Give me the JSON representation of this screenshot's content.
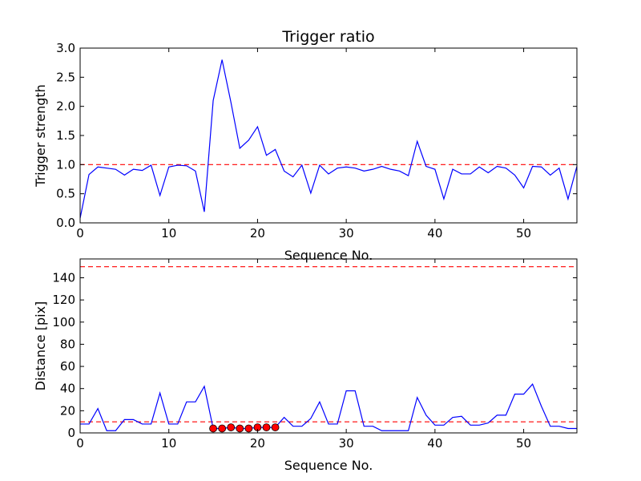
{
  "chart_data": [
    {
      "type": "line",
      "title": "Trigger ratio",
      "xlabel": "Sequence No.",
      "ylabel": "Trigger strength",
      "xlim": [
        0,
        56
      ],
      "ylim": [
        0,
        3.0
      ],
      "xticks": [
        0,
        10,
        20,
        30,
        40,
        50
      ],
      "yticks": [
        0,
        0.5,
        1.0,
        1.5,
        2.0,
        2.5,
        3.0
      ],
      "xtick_labels": [
        "0",
        "10",
        "20",
        "30",
        "40",
        "50"
      ],
      "ytick_labels": [
        "0.0",
        "0.5",
        "1.0",
        "1.5",
        "2.0",
        "2.5",
        "3.0"
      ],
      "grid": false,
      "series": [
        {
          "color": "#0000ff",
          "x": [
            0,
            1,
            2,
            3,
            4,
            5,
            6,
            7,
            8,
            9,
            10,
            11,
            12,
            13,
            14,
            15,
            16,
            17,
            18,
            19,
            20,
            21,
            22,
            23,
            24,
            25,
            26,
            27,
            28,
            29,
            30,
            31,
            32,
            33,
            34,
            35,
            36,
            37,
            38,
            39,
            40,
            41,
            42,
            43,
            44,
            45,
            46,
            47,
            48,
            49,
            50,
            51,
            52,
            53,
            54,
            55,
            56
          ],
          "y": [
            0.08,
            0.83,
            0.96,
            0.94,
            0.92,
            0.82,
            0.92,
            0.9,
            0.99,
            0.47,
            0.96,
            0.99,
            0.98,
            0.89,
            0.19,
            2.1,
            2.8,
            2.07,
            1.28,
            1.42,
            1.65,
            1.16,
            1.26,
            0.89,
            0.79,
            0.99,
            0.51,
            0.99,
            0.84,
            0.94,
            0.96,
            0.94,
            0.89,
            0.92,
            0.97,
            0.92,
            0.89,
            0.81,
            1.4,
            0.97,
            0.92,
            0.41,
            0.92,
            0.84,
            0.84,
            0.96,
            0.86,
            0.97,
            0.94,
            0.82,
            0.6,
            0.97,
            0.96,
            0.82,
            0.94,
            0.41,
            0.97
          ]
        }
      ],
      "reference_lines": [
        {
          "orientation": "horizontal",
          "value": 1.0,
          "style": "dashed",
          "color": "#ff0000"
        }
      ]
    },
    {
      "type": "line",
      "title": "",
      "xlabel": "Sequence No.",
      "ylabel": "Distance [pix]",
      "xlim": [
        0,
        56
      ],
      "ylim": [
        0,
        157
      ],
      "xticks": [
        0,
        10,
        20,
        30,
        40,
        50
      ],
      "yticks": [
        0,
        20,
        40,
        60,
        80,
        100,
        120,
        140
      ],
      "xtick_labels": [
        "0",
        "10",
        "20",
        "30",
        "40",
        "50"
      ],
      "ytick_labels": [
        "0",
        "20",
        "40",
        "60",
        "80",
        "100",
        "120",
        "140"
      ],
      "grid": false,
      "series": [
        {
          "color": "#0000ff",
          "x": [
            0,
            1,
            2,
            3,
            4,
            5,
            6,
            7,
            8,
            9,
            10,
            11,
            12,
            13,
            14,
            15,
            16,
            17,
            18,
            19,
            20,
            21,
            22,
            23,
            24,
            25,
            26,
            27,
            28,
            29,
            30,
            31,
            32,
            33,
            34,
            35,
            36,
            37,
            38,
            39,
            40,
            41,
            42,
            43,
            44,
            45,
            46,
            47,
            48,
            49,
            50,
            51,
            52,
            53,
            54,
            55,
            56
          ],
          "y": [
            8,
            8,
            22,
            2,
            2,
            12,
            12,
            8,
            8,
            36,
            8,
            8,
            28,
            28,
            42,
            4,
            4,
            5,
            4,
            4,
            5,
            5,
            5,
            14,
            6,
            6,
            13,
            28,
            8,
            8,
            38,
            38,
            6,
            6,
            2,
            2,
            2,
            2,
            32,
            16,
            7,
            7,
            14,
            15,
            7,
            7,
            9,
            16,
            16,
            35,
            35,
            44,
            24,
            6,
            6,
            4,
            4
          ]
        },
        {
          "color": "#ff0000",
          "marker": "circle",
          "x": [
            15,
            16,
            17,
            18,
            19,
            20,
            21,
            22
          ],
          "y": [
            4,
            4,
            5,
            4,
            4,
            5,
            5,
            5
          ]
        }
      ],
      "reference_lines": [
        {
          "orientation": "horizontal",
          "value": 150,
          "style": "dashed",
          "color": "#ff0000"
        },
        {
          "orientation": "horizontal",
          "value": 10,
          "style": "dashed",
          "color": "#ff0000"
        }
      ]
    }
  ]
}
